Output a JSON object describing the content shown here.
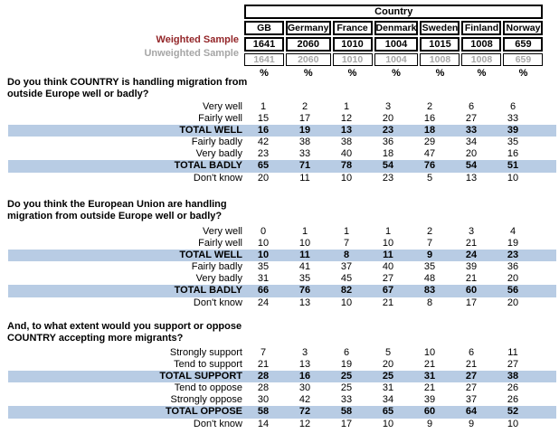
{
  "header": {
    "group_label": "Country",
    "columns": [
      "GB",
      "Germany",
      "France",
      "Denmark",
      "Sweden",
      "Finland",
      "Norway"
    ],
    "weighted_label": "Weighted Sample",
    "unweighted_label": "Unweighted Sample",
    "weighted_values": [
      "1641",
      "2060",
      "1010",
      "1004",
      "1015",
      "1008",
      "659"
    ],
    "unweighted_values": [
      "1641",
      "2060",
      "1010",
      "1004",
      "1008",
      "1008",
      "659"
    ],
    "percent_symbol": "%"
  },
  "questions": [
    {
      "lines": [
        "Do you think COUNTRY is handling migration from",
        "outside Europe well or badly?"
      ],
      "rows": [
        {
          "label": "Very well",
          "values": [
            "1",
            "2",
            "1",
            "3",
            "2",
            "6",
            "6"
          ],
          "total": false
        },
        {
          "label": "Fairly well",
          "values": [
            "15",
            "17",
            "12",
            "20",
            "16",
            "27",
            "33"
          ],
          "total": false
        },
        {
          "label": "TOTAL WELL",
          "values": [
            "16",
            "19",
            "13",
            "23",
            "18",
            "33",
            "39"
          ],
          "total": true
        },
        {
          "label": "Fairly badly",
          "values": [
            "42",
            "38",
            "38",
            "36",
            "29",
            "34",
            "35"
          ],
          "total": false
        },
        {
          "label": "Very badly",
          "values": [
            "23",
            "33",
            "40",
            "18",
            "47",
            "20",
            "16"
          ],
          "total": false
        },
        {
          "label": "TOTAL BADLY",
          "values": [
            "65",
            "71",
            "78",
            "54",
            "76",
            "54",
            "51"
          ],
          "total": true
        },
        {
          "label": "Don't know",
          "values": [
            "20",
            "11",
            "10",
            "23",
            "5",
            "13",
            "10"
          ],
          "total": false
        }
      ]
    },
    {
      "lines": [
        "Do you think the European Union are handling",
        "migration from outside Europe well or badly?"
      ],
      "rows": [
        {
          "label": "Very well",
          "values": [
            "0",
            "1",
            "1",
            "1",
            "2",
            "3",
            "4"
          ],
          "total": false
        },
        {
          "label": "Fairly well",
          "values": [
            "10",
            "10",
            "7",
            "10",
            "7",
            "21",
            "19"
          ],
          "total": false
        },
        {
          "label": "TOTAL WELL",
          "values": [
            "10",
            "11",
            "8",
            "11",
            "9",
            "24",
            "23"
          ],
          "total": true
        },
        {
          "label": "Fairly badly",
          "values": [
            "35",
            "41",
            "37",
            "40",
            "35",
            "39",
            "36"
          ],
          "total": false
        },
        {
          "label": "Very badly",
          "values": [
            "31",
            "35",
            "45",
            "27",
            "48",
            "21",
            "20"
          ],
          "total": false
        },
        {
          "label": "TOTAL BADLY",
          "values": [
            "66",
            "76",
            "82",
            "67",
            "83",
            "60",
            "56"
          ],
          "total": true
        },
        {
          "label": "Don't know",
          "values": [
            "24",
            "13",
            "10",
            "21",
            "8",
            "17",
            "20"
          ],
          "total": false
        }
      ]
    },
    {
      "lines": [
        "And, to what extent would you support or oppose",
        "COUNTRY accepting more migrants?"
      ],
      "rows": [
        {
          "label": "Strongly support",
          "values": [
            "7",
            "3",
            "6",
            "5",
            "10",
            "6",
            "11"
          ],
          "total": false
        },
        {
          "label": "Tend to support",
          "values": [
            "21",
            "13",
            "19",
            "20",
            "21",
            "21",
            "27"
          ],
          "total": false
        },
        {
          "label": "TOTAL SUPPORT",
          "values": [
            "28",
            "16",
            "25",
            "25",
            "31",
            "27",
            "38"
          ],
          "total": true
        },
        {
          "label": "Tend to oppose",
          "values": [
            "28",
            "30",
            "25",
            "31",
            "21",
            "27",
            "26"
          ],
          "total": false
        },
        {
          "label": "Strongly oppose",
          "values": [
            "30",
            "42",
            "33",
            "34",
            "39",
            "37",
            "26"
          ],
          "total": false
        },
        {
          "label": "TOTAL OPPOSE",
          "values": [
            "58",
            "72",
            "58",
            "65",
            "60",
            "64",
            "52"
          ],
          "total": true
        },
        {
          "label": "Don't know",
          "values": [
            "14",
            "12",
            "17",
            "10",
            "9",
            "9",
            "10"
          ],
          "total": false
        }
      ]
    }
  ],
  "colors": {
    "highlight_band": "#b8cce4",
    "weighted_label_red": "#932528",
    "unweighted_gray": "#a6a6a6",
    "border_black": "#000000"
  }
}
